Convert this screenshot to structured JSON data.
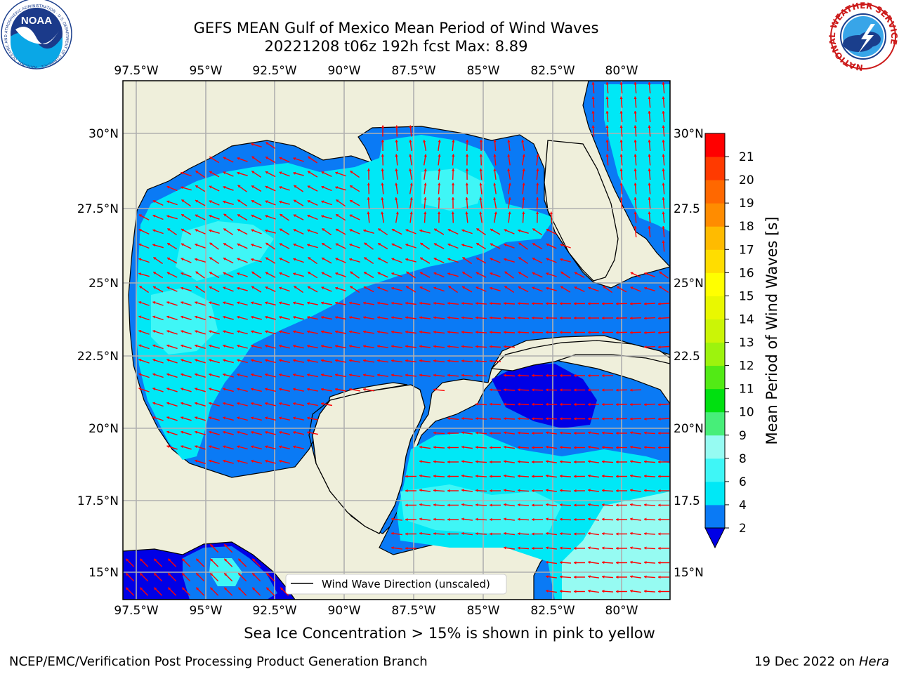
{
  "header": {
    "title_line1": "GEFS MEAN Gulf of Mexico Mean Period of Wind Waves",
    "title_line2": "20221208 t06z 192h fcst   Max: 8.89"
  },
  "logos": {
    "left": {
      "name": "noaa-logo",
      "text": "NOAA",
      "ring_text": "NATIONAL OCEANIC AND ATMOSPHERIC ADMINISTRATION · U.S. DEPARTMENT OF COMMERCE"
    },
    "right": {
      "name": "nws-logo",
      "ring_text": "NATIONAL WEATHER SERVICE"
    }
  },
  "map": {
    "lon_labels": [
      "97.5°W",
      "95°W",
      "92.5°W",
      "90°W",
      "87.5°W",
      "85°W",
      "82.5°W",
      "80°W"
    ],
    "lat_labels_left": [
      "30°N",
      "27.5°N",
      "25°N",
      "22.5°N",
      "20°N",
      "17.5°N",
      "15°N"
    ],
    "lat_labels_right": [
      "30°N",
      "27.5",
      "25°N",
      "22.5",
      "20°N",
      "17.5",
      "15°N"
    ],
    "legend_label": "Wind Wave Direction (unscaled)",
    "arrow_color": "#ff0000",
    "land_color": "#efefdb",
    "grid_color": "#b0b0b0"
  },
  "colorbar": {
    "label": "Mean Period of Wind Waves [s]",
    "ticks": [
      "2",
      "4",
      "6",
      "8",
      "9",
      "10",
      "11",
      "12",
      "13",
      "14",
      "15",
      "16",
      "17",
      "18",
      "19",
      "20",
      "21"
    ],
    "colors": [
      "#0a7af5",
      "#00e8f6",
      "#3ff6f6",
      "#96fbf2",
      "#47ee79",
      "#00e010",
      "#52ea15",
      "#9df30d",
      "#cbf506",
      "#e9f800",
      "#ffff00",
      "#ffdd00",
      "#ffbb00",
      "#ff8c00",
      "#ff6800",
      "#ff3a00",
      "#ff0000"
    ],
    "under_color": "#0000e6"
  },
  "chart_data": {
    "type": "heatmap",
    "title": "GEFS MEAN Gulf of Mexico Mean Period of Wind Waves",
    "subtitle": "20221208 t06z 192h fcst   Max: 8.89",
    "max_value": 8.89,
    "units": "s",
    "lon_range": [
      -98.0,
      -78.2
    ],
    "lat_range": [
      14.0,
      31.7
    ],
    "color_levels": [
      2,
      4,
      6,
      8,
      9,
      10,
      11,
      12,
      13,
      14,
      15,
      16,
      17,
      18,
      19,
      20,
      21
    ],
    "colorbar_label": "Mean Period of Wind Waves [s]",
    "legend": "Wind Wave Direction (unscaled)"
  },
  "notes": {
    "sea_ice": "Sea Ice Concentration > 15% is shown in pink to yellow"
  },
  "footer": {
    "left": "NCEP/EMC/Verification Post Processing Product Generation Branch",
    "right_prefix": "19 Dec 2022 on ",
    "right_host": "Hera"
  }
}
